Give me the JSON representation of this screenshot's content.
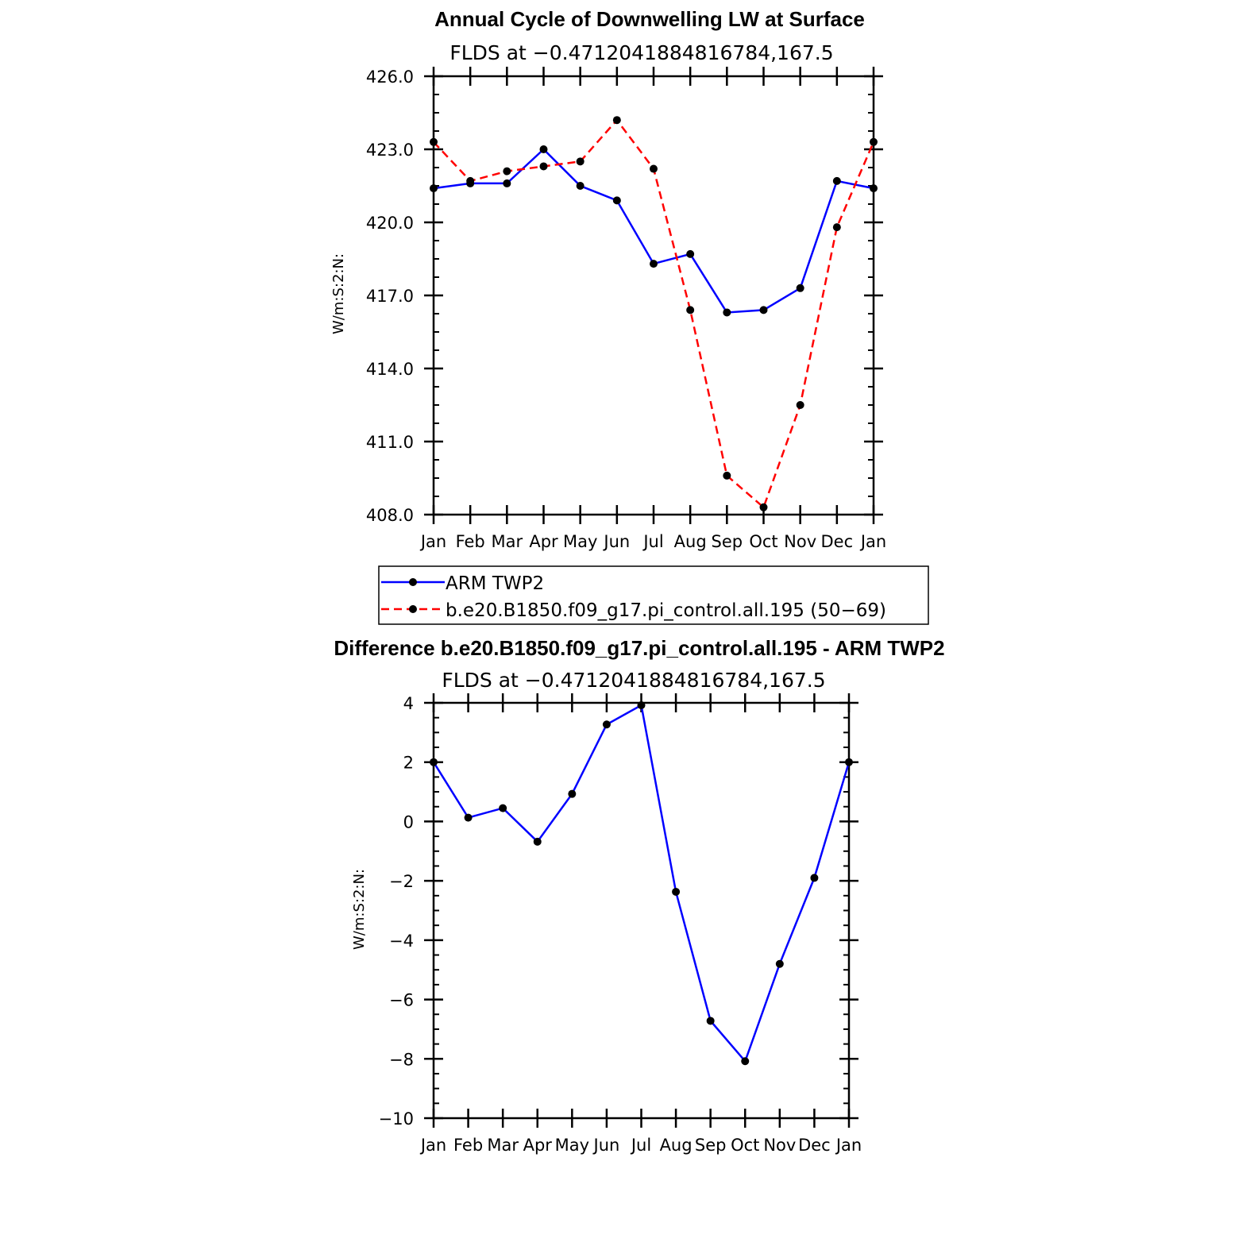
{
  "colors": {
    "obs": "#0000ff",
    "model": "#ff0000",
    "diff": "#0000ff",
    "marker": "#000000"
  },
  "chart_data": [
    {
      "type": "line",
      "title": "Annual Cycle of Downwelling LW at Surface",
      "subtitle": "FLDS at −0.4712041884816784,167.5",
      "ylabel": "W/m:S:2:N:",
      "categories": [
        "Jan",
        "Feb",
        "Mar",
        "Apr",
        "May",
        "Jun",
        "Jul",
        "Aug",
        "Sep",
        "Oct",
        "Nov",
        "Dec",
        "Jan"
      ],
      "ylim": [
        408.0,
        426.0
      ],
      "yticks": [
        408.0,
        411.0,
        414.0,
        417.0,
        420.0,
        423.0,
        426.0
      ],
      "ytick_labels": [
        "408.0",
        "411.0",
        "414.0",
        "417.0",
        "420.0",
        "423.0",
        "426.0"
      ],
      "series": [
        {
          "name": "ARM TWP2",
          "style": "solid",
          "color": "#0000ff",
          "values": [
            421.4,
            421.6,
            421.6,
            423.0,
            421.5,
            420.9,
            418.3,
            418.7,
            416.3,
            416.4,
            417.3,
            421.7,
            421.4
          ]
        },
        {
          "name": "b.e20.B1850.f09_g17.pi_control.all.195 (50−69)",
          "style": "dashed",
          "color": "#ff0000",
          "values": [
            423.3,
            421.7,
            422.1,
            422.3,
            422.5,
            424.2,
            422.2,
            416.4,
            409.6,
            408.3,
            412.5,
            419.8,
            423.3
          ]
        }
      ]
    },
    {
      "type": "line",
      "title": "Difference b.e20.B1850.f09_g17.pi_control.all.195 - ARM TWP2",
      "subtitle": "FLDS at −0.4712041884816784,167.5",
      "ylabel": "W/m:S:2:N:",
      "categories": [
        "Jan",
        "Feb",
        "Mar",
        "Apr",
        "May",
        "Jun",
        "Jul",
        "Aug",
        "Sep",
        "Oct",
        "Nov",
        "Dec",
        "Jan"
      ],
      "ylim": [
        -10,
        4
      ],
      "yticks": [
        -10,
        -8,
        -6,
        -4,
        -2,
        0,
        2,
        4
      ],
      "ytick_labels": [
        "−10",
        "−8",
        "−6",
        "−4",
        "−2",
        "0",
        "2",
        "4"
      ],
      "series": [
        {
          "name": "Difference",
          "style": "solid",
          "color": "#0000ff",
          "values": [
            2.0,
            0.13,
            0.45,
            -0.68,
            0.93,
            3.27,
            3.92,
            -2.37,
            -6.72,
            -8.08,
            -4.8,
            -1.9,
            2.0
          ]
        }
      ]
    }
  ]
}
